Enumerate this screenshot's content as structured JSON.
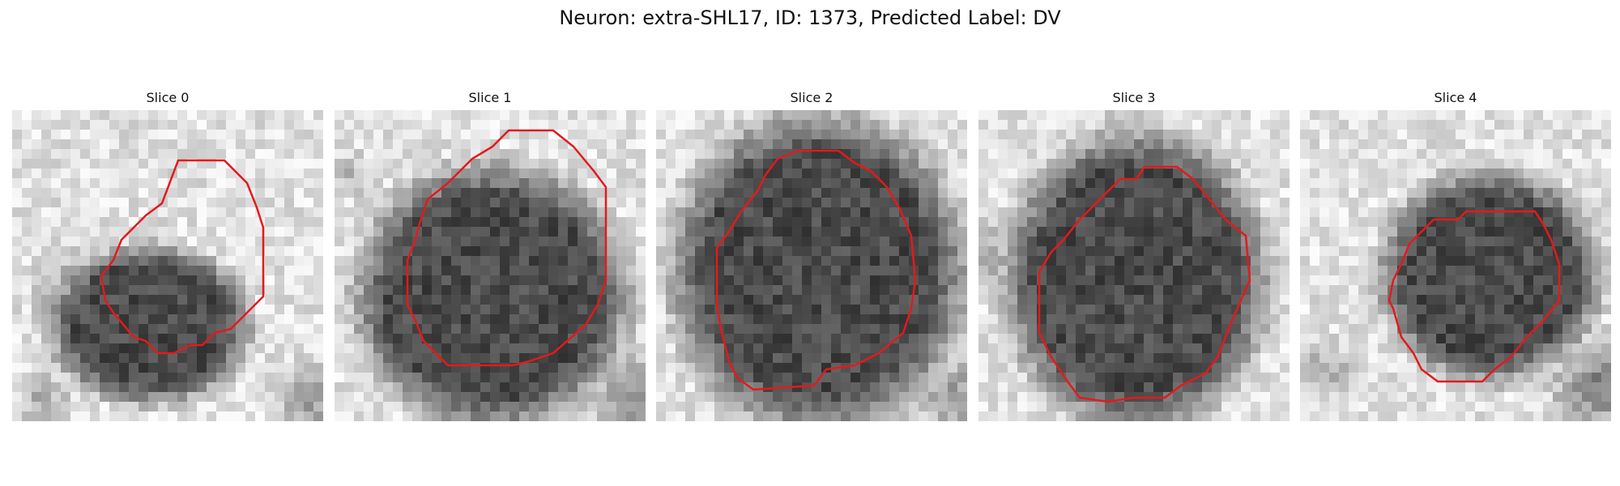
{
  "figure": {
    "title": "Neuron: extra-SHL17, ID: 1373, Predicted Label: DV"
  },
  "contour_color": "#e31a1c",
  "slices": [
    {
      "label": "Slice 0"
    },
    {
      "label": "Slice 1"
    },
    {
      "label": "Slice 2"
    },
    {
      "label": "Slice 3"
    },
    {
      "label": "Slice 4"
    }
  ]
}
